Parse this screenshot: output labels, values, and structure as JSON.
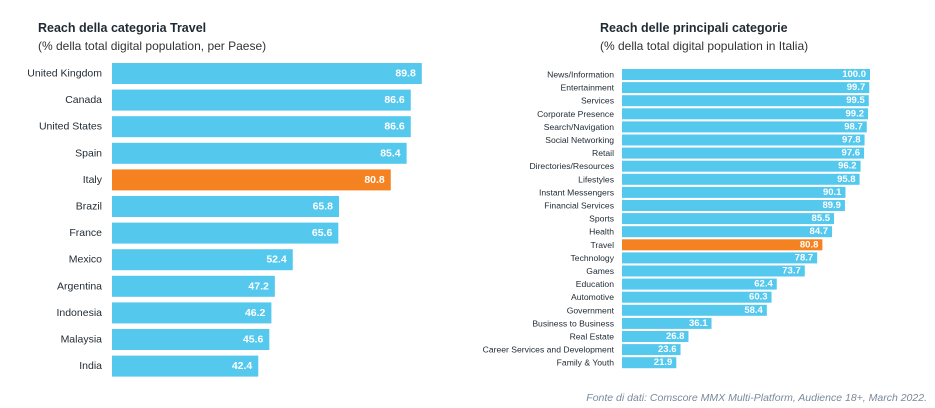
{
  "chart_data": [
    {
      "type": "bar",
      "orientation": "horizontal",
      "title": "Reach della categoria Travel",
      "subtitle": "(% della total digital population, per Paese)",
      "categories": [
        "United Kingdom",
        "Canada",
        "United States",
        "Spain",
        "Italy",
        "Brazil",
        "France",
        "Mexico",
        "Argentina",
        "Indonesia",
        "Malaysia",
        "India"
      ],
      "values": [
        89.8,
        86.6,
        86.6,
        85.4,
        80.8,
        65.8,
        65.6,
        52.4,
        47.2,
        46.2,
        45.6,
        42.4
      ],
      "value_labels": [
        "89.8",
        "86.6",
        "86.6",
        "85.4",
        "80.8",
        "65.8",
        "65.6",
        "52.4",
        "47.2",
        "46.2",
        "45.6",
        "42.4"
      ],
      "highlight": "Italy",
      "xlim": [
        0,
        100
      ]
    },
    {
      "type": "bar",
      "orientation": "horizontal",
      "title": "Reach delle principali categorie",
      "subtitle": "(% della total digital population in Italia)",
      "categories": [
        "News/Information",
        "Entertainment",
        "Services",
        "Corporate Presence",
        "Search/Navigation",
        "Social Networking",
        "Retail",
        "Directories/Resources",
        "Lifestyles",
        "Instant Messengers",
        "Financial Services",
        "Sports",
        "Health",
        "Travel",
        "Technology",
        "Games",
        "Education",
        "Automotive",
        "Government",
        "Business to Business",
        "Real Estate",
        "Career Services and Development",
        "Family & Youth"
      ],
      "values": [
        100.0,
        99.7,
        99.5,
        99.2,
        98.7,
        97.8,
        97.6,
        96.2,
        95.8,
        90.1,
        89.9,
        85.5,
        84.7,
        80.8,
        78.7,
        73.7,
        62.4,
        60.3,
        58.4,
        36.1,
        26.8,
        23.6,
        21.9
      ],
      "value_labels": [
        "100.0",
        "99.7",
        "99.5",
        "99.2",
        "98.7",
        "97.8",
        "97.6",
        "96.2",
        "95.8",
        "90.1",
        "89.9",
        "85.5",
        "84.7",
        "80.8",
        "78.7",
        "73.7",
        "62.4",
        "60.3",
        "58.4",
        "36.1",
        "26.8",
        "23.6",
        "21.9"
      ],
      "highlight": "Travel",
      "xlim": [
        0,
        100
      ]
    }
  ],
  "colors": {
    "bar": "#55c8ee",
    "highlight": "#f58220",
    "label_text": "#ffffff",
    "category_text": "#1f2a33"
  },
  "source": "Fonte di dati: Comscore MMX Multi-Platform, Audience 18+, March 2022."
}
